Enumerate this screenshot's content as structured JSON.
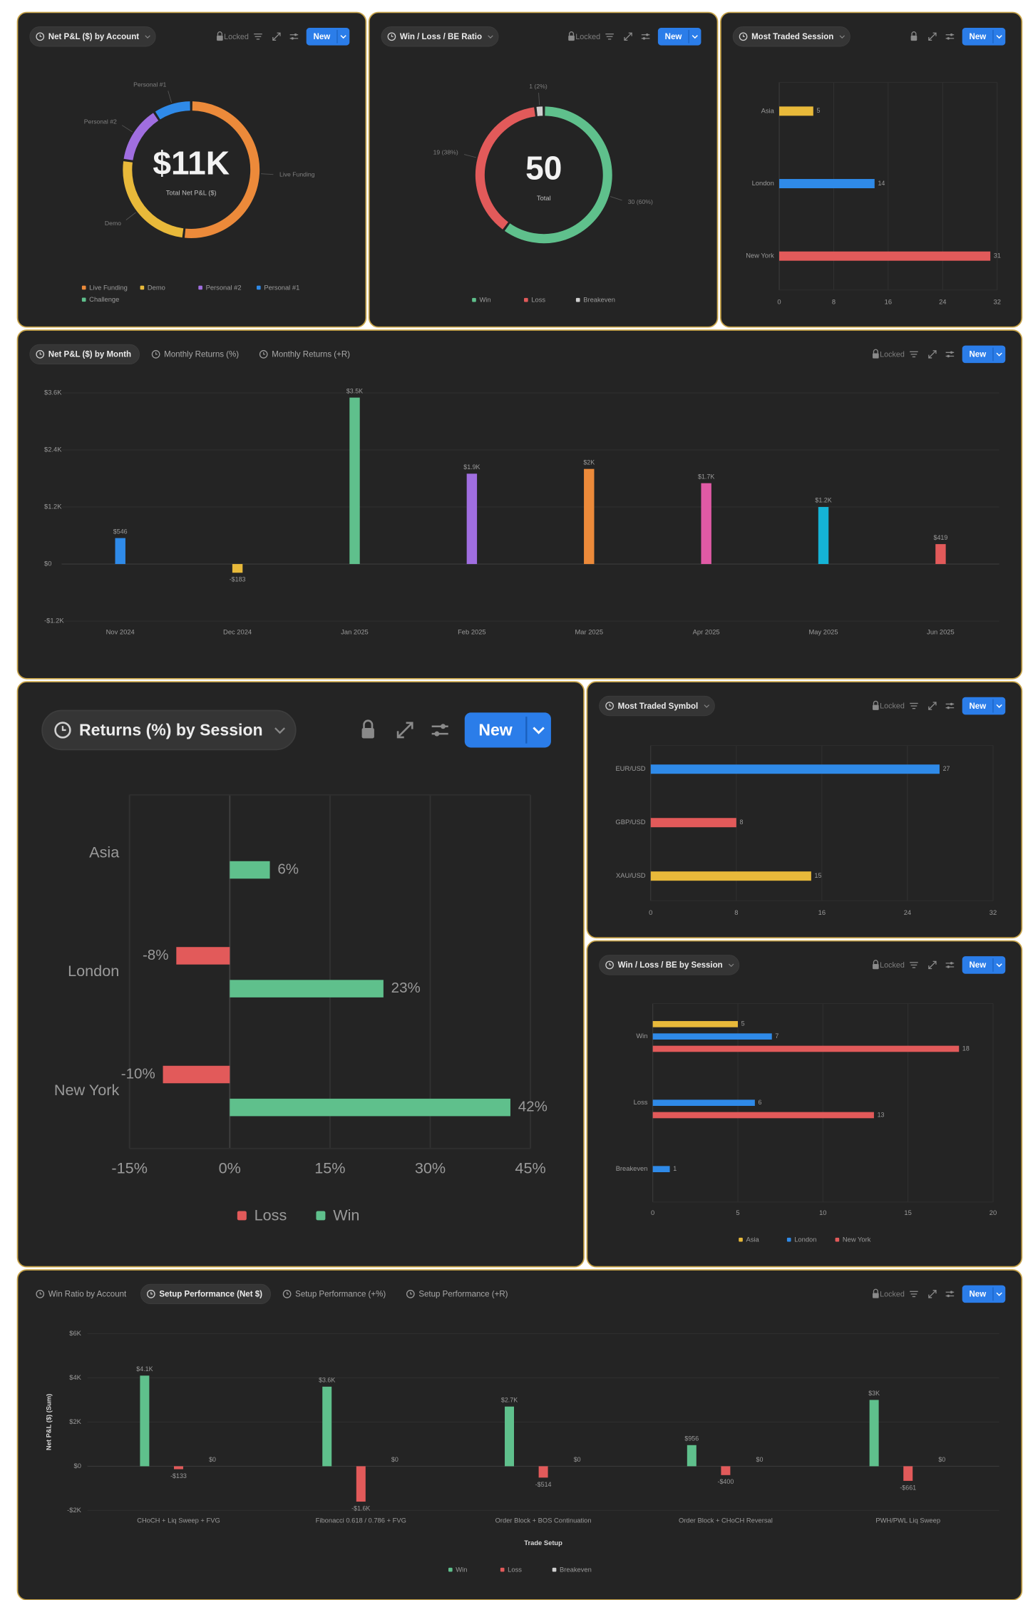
{
  "chart_data": [
    {
      "type": "donut",
      "tabs": [
        {
          "label": "Net P&L ($) by Account",
          "active": true
        }
      ],
      "locked": "Locked",
      "button": "New",
      "center_label": "$11K",
      "center_sublabel": "Total Net P&L ($)",
      "categories": [
        "Live Funding",
        "Demo",
        "Personal #2",
        "Personal #1",
        "Challenge"
      ],
      "values": [
        5700,
        2800,
        1500,
        1000,
        0
      ],
      "colors": [
        "#ec8a3a",
        "#e8b93a",
        "#a06ee0",
        "#2f8ae8",
        "#5fc08c"
      ],
      "slice_labels": "categories",
      "legend": "bottom"
    },
    {
      "type": "donut",
      "tabs": [
        {
          "label": "Win / Loss / BE Ratio",
          "active": true
        }
      ],
      "locked": "Locked",
      "button": "New",
      "total": 50,
      "center_sublabel": "Total",
      "categories": [
        "Win",
        "Loss",
        "Breakeven"
      ],
      "values": [
        30,
        19,
        1
      ],
      "value_labels": [
        "30 (60%)",
        "19 (38%)",
        "1 (2%)"
      ],
      "colors": [
        "#5fc08c",
        "#e25a5a",
        "#cfcfcf"
      ],
      "slice_labels": "value_labels",
      "legend": "bottom"
    },
    {
      "type": "hbar",
      "tabs": [
        {
          "label": "Most Traded Session",
          "active": true
        }
      ],
      "button": "New",
      "categories": [
        "Asia",
        "London",
        "New York"
      ],
      "values": [
        5,
        14,
        31
      ],
      "colors": [
        "#e8b93a",
        "#2f8ae8",
        "#e25a5a"
      ],
      "xlim": [
        0,
        32
      ],
      "xticks": [
        0,
        8,
        16,
        24,
        32
      ],
      "grid": true
    },
    {
      "type": "bar",
      "tabs": [
        {
          "label": "Net P&L ($) by Month",
          "active": true
        },
        {
          "label": "Monthly Returns (%)"
        },
        {
          "label": "Monthly Returns (+R)"
        }
      ],
      "locked": "Locked",
      "button": "New",
      "categories": [
        "Nov 2024",
        "Dec 2024",
        "Jan 2025",
        "Feb 2025",
        "Mar 2025",
        "Apr 2025",
        "May 2025",
        "Jun 2025"
      ],
      "values": [
        546,
        -183,
        3500,
        1900,
        2000,
        1700,
        1200,
        419
      ],
      "value_labels": [
        "$546",
        "-$183",
        "$3.5K",
        "$1.9K",
        "$2K",
        "$1.7K",
        "$1.2K",
        "$419"
      ],
      "colors": [
        "#2f8ae8",
        "#e8b93a",
        "#5fc08c",
        "#a06ee0",
        "#ec8a3a",
        "#e05aa5",
        "#15b3d6",
        "#e25a5a"
      ],
      "ylim": [
        -1200,
        3600
      ],
      "yticks": [
        {
          "value": -1200,
          "label": "-$1.2K"
        },
        {
          "value": 0,
          "label": "$0"
        },
        {
          "value": 1200,
          "label": "$1.2K"
        },
        {
          "value": 2400,
          "label": "$2.4K"
        },
        {
          "value": 3600,
          "label": "$3.6K"
        }
      ],
      "grid": true
    },
    {
      "type": "hbar",
      "tabs": [
        {
          "label": "Returns (%) by Session",
          "active": true
        }
      ],
      "button": "New",
      "categories": [
        "Asia",
        "London",
        "New York"
      ],
      "series": [
        {
          "name": "Loss",
          "color": "#e25a5a",
          "values": [
            null,
            -8,
            -10
          ],
          "value_labels": [
            null,
            "-8%",
            "-10%"
          ]
        },
        {
          "name": "Win",
          "color": "#5fc08c",
          "values": [
            6,
            23,
            42
          ],
          "value_labels": [
            "6%",
            "23%",
            "42%"
          ]
        }
      ],
      "xlim": [
        -15,
        45
      ],
      "xticks": [
        {
          "value": -15,
          "label": "-15%"
        },
        {
          "value": 0,
          "label": "0%"
        },
        {
          "value": 15,
          "label": "15%"
        },
        {
          "value": 30,
          "label": "30%"
        },
        {
          "value": 45,
          "label": "45%"
        }
      ],
      "grid": true,
      "legend": "bottom"
    },
    {
      "type": "hbar",
      "tabs": [
        {
          "label": "Most Traded Symbol",
          "active": true
        }
      ],
      "locked": "Locked",
      "button": "New",
      "categories": [
        "EUR/USD",
        "GBP/USD",
        "XAU/USD"
      ],
      "values": [
        27,
        8,
        15
      ],
      "colors": [
        "#2f8ae8",
        "#e25a5a",
        "#e8b93a"
      ],
      "xlim": [
        0,
        32
      ],
      "xticks": [
        0,
        8,
        16,
        24,
        32
      ],
      "grid": true
    },
    {
      "type": "hbar",
      "tabs": [
        {
          "label": "Win / Loss / BE by Session",
          "active": true
        }
      ],
      "locked": "Locked",
      "button": "New",
      "categories": [
        "Win",
        "Loss",
        "Breakeven"
      ],
      "series": [
        {
          "name": "Asia",
          "color": "#e8b93a",
          "values": [
            5,
            null,
            null
          ]
        },
        {
          "name": "London",
          "color": "#2f8ae8",
          "values": [
            7,
            6,
            1
          ]
        },
        {
          "name": "New York",
          "color": "#e25a5a",
          "values": [
            18,
            13,
            null
          ]
        }
      ],
      "xlim": [
        0,
        20
      ],
      "xticks": [
        0,
        5,
        10,
        15,
        20
      ],
      "grid": true,
      "legend": "bottom"
    },
    {
      "type": "bar",
      "tabs": [
        {
          "label": "Win Ratio by Account"
        },
        {
          "label": "Setup Performance (Net $)",
          "active": true
        },
        {
          "label": "Setup Performance (+%)"
        },
        {
          "label": "Setup Performance (+R)"
        }
      ],
      "locked": "Locked",
      "button": "New",
      "xlabel": "Trade Setup",
      "ylabel": "Net P&L ($) (Sum)",
      "categories": [
        "CHoCH + Liq Sweep + FVG",
        "Fibonacci 0.618 / 0.786 + FVG",
        "Order Block + BOS Continuation",
        "Order Block + CHoCH Reversal",
        "PWH/PWL Liq Sweep"
      ],
      "series": [
        {
          "name": "Win",
          "color": "#5fc08c",
          "values": [
            4100,
            3600,
            2700,
            956,
            3000
          ],
          "value_labels": [
            "$4.1K",
            "$3.6K",
            "$2.7K",
            "$956",
            "$3K"
          ]
        },
        {
          "name": "Loss",
          "color": "#e25a5a",
          "values": [
            -133,
            -1600,
            -514,
            -400,
            -661
          ],
          "value_labels": [
            "-$133",
            "-$1.6K",
            "-$514",
            "-$400",
            "-$661"
          ]
        },
        {
          "name": "Breakeven",
          "color": "#cfcfcf",
          "values": [
            0,
            0,
            0,
            0,
            0
          ],
          "value_labels": [
            "$0",
            "$0",
            "$0",
            "$0",
            "$0"
          ]
        }
      ],
      "ylim": [
        -2000,
        6000
      ],
      "yticks": [
        {
          "value": -2000,
          "label": "-$2K"
        },
        {
          "value": 0,
          "label": "$0"
        },
        {
          "value": 2000,
          "label": "$2K"
        },
        {
          "value": 4000,
          "label": "$4K"
        },
        {
          "value": 6000,
          "label": "$6K"
        }
      ],
      "grid": true,
      "legend": "bottom"
    }
  ]
}
